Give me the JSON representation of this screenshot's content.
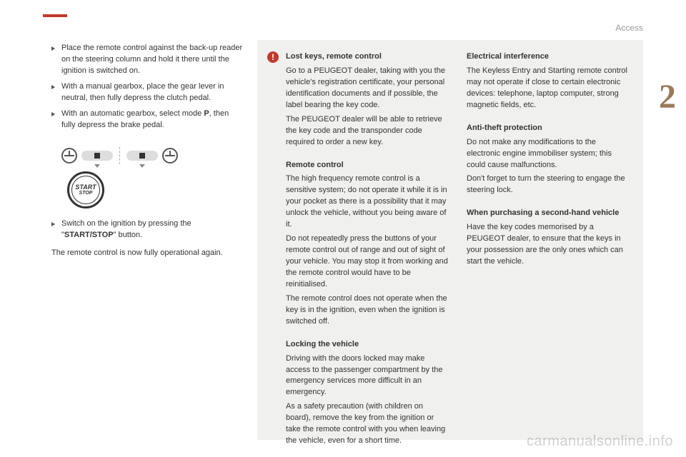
{
  "header": {
    "section": "Access",
    "chapter": "2"
  },
  "colors": {
    "accent_red": "#c0392b",
    "chapter_brown": "#9b7a5a",
    "grey_box": "#f0f0ee"
  },
  "left": {
    "bullets": [
      "Place the remote control against the back-up reader on the steering column and hold it there until the ignition is switched on.",
      "With a manual gearbox, place the gear lever in neutral, then fully depress the clutch pedal.",
      "With an automatic gearbox, select mode P, then fully depress the brake pedal."
    ],
    "startstop": {
      "line1": "START",
      "line2": "STOP"
    },
    "bullet4_pre": "Switch on the ignition by pressing the \"",
    "bullet4_bold": "START/STOP",
    "bullet4_post": "\" button.",
    "para": "The remote control is now fully operational again."
  },
  "box": {
    "warn": "!",
    "colA": [
      {
        "title": "Lost keys, remote control",
        "body": "Go to a PEUGEOT dealer, taking with you the vehicle's registration certificate, your personal identification documents and if possible, the label bearing the key code.\nThe PEUGEOT dealer will be able to retrieve the key code and the transponder code required to order a new key."
      },
      {
        "title": "Remote control",
        "body": "The high frequency remote control is a sensitive system; do not operate it while it is in your pocket as there is a possibility that it may unlock the vehicle, without you being aware of it.\nDo not repeatedly press the buttons of your remote control out of range and out of sight of your vehicle. You may stop it from working and the remote control would have to be reinitialised.\nThe remote control does not operate when the key is in the ignition, even when the ignition is switched off."
      },
      {
        "title": "Locking the vehicle",
        "body": "Driving with the doors locked may make access to the passenger compartment by the emergency services more difficult in an emergency.\nAs a safety precaution (with children on board), remove the key from the ignition or take the remote control with you when leaving the vehicle, even for a short time."
      }
    ],
    "colB": [
      {
        "title": "Electrical interference",
        "body": "The Keyless Entry and Starting remote control may not operate if close to certain electronic devices: telephone, laptop computer, strong magnetic fields, etc."
      },
      {
        "title": "Anti-theft protection",
        "body": "Do not make any modifications to the electronic engine immobiliser system; this could cause malfunctions.\nDon't forget to turn the steering to engage the steering lock."
      },
      {
        "title": "When purchasing a second-hand vehicle",
        "body": "Have the key codes memorised by a PEUGEOT dealer, to ensure that the keys in your possession are the only ones which can start the vehicle."
      }
    ]
  },
  "watermark": "carmanualsonline.info"
}
